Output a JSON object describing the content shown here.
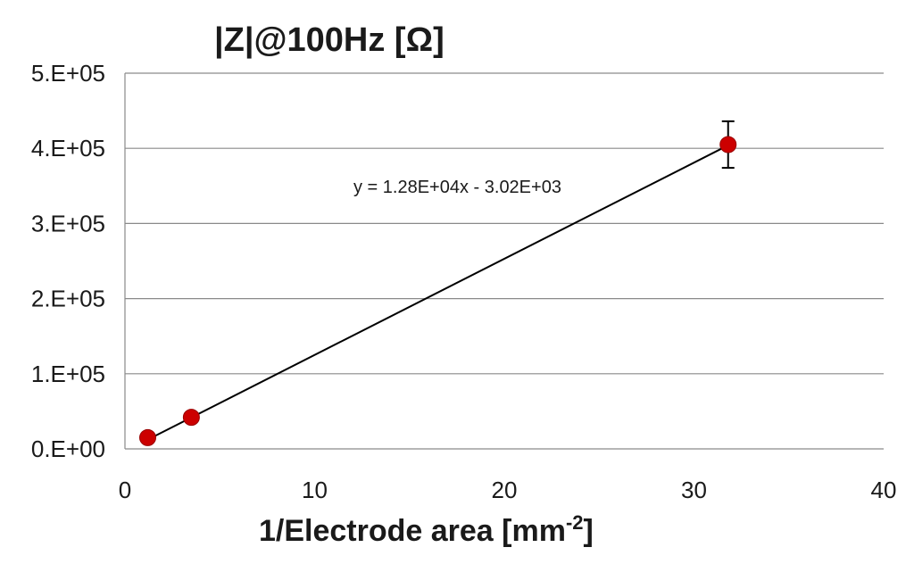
{
  "chart_data": {
    "type": "scatter",
    "title_main": "|Z|@100Hz [",
    "title_symbol": "Ω",
    "title_close": "]",
    "xlabel_main": "1/Electrode area [mm",
    "xlabel_sup": "-2",
    "xlabel_close": "]",
    "ylabel": "",
    "xlim": [
      0,
      40
    ],
    "ylim": [
      0,
      500000
    ],
    "x_ticks": [
      0,
      10,
      20,
      30,
      40
    ],
    "x_tick_labels": [
      "0",
      "10",
      "20",
      "30",
      "40"
    ],
    "y_ticks": [
      0,
      100000,
      200000,
      300000,
      400000,
      500000
    ],
    "y_tick_labels": [
      "0.E+00",
      "1.E+05",
      "2.E+05",
      "3.E+05",
      "4.E+05",
      "5.E+05"
    ],
    "grid": "horizontal",
    "series": [
      {
        "x": [
          1.2,
          3.5,
          31.8
        ],
        "y": [
          15000,
          42000,
          405000
        ],
        "y_err": [
          0,
          0,
          31000
        ],
        "marker_color": "#cc0000"
      }
    ],
    "trendline": {
      "slope": 12800,
      "intercept": -3020,
      "equation_text": "y = 1.28E+04x - 3.02E+03",
      "x_range": [
        1.2,
        31.8
      ],
      "color": "#000000"
    }
  }
}
